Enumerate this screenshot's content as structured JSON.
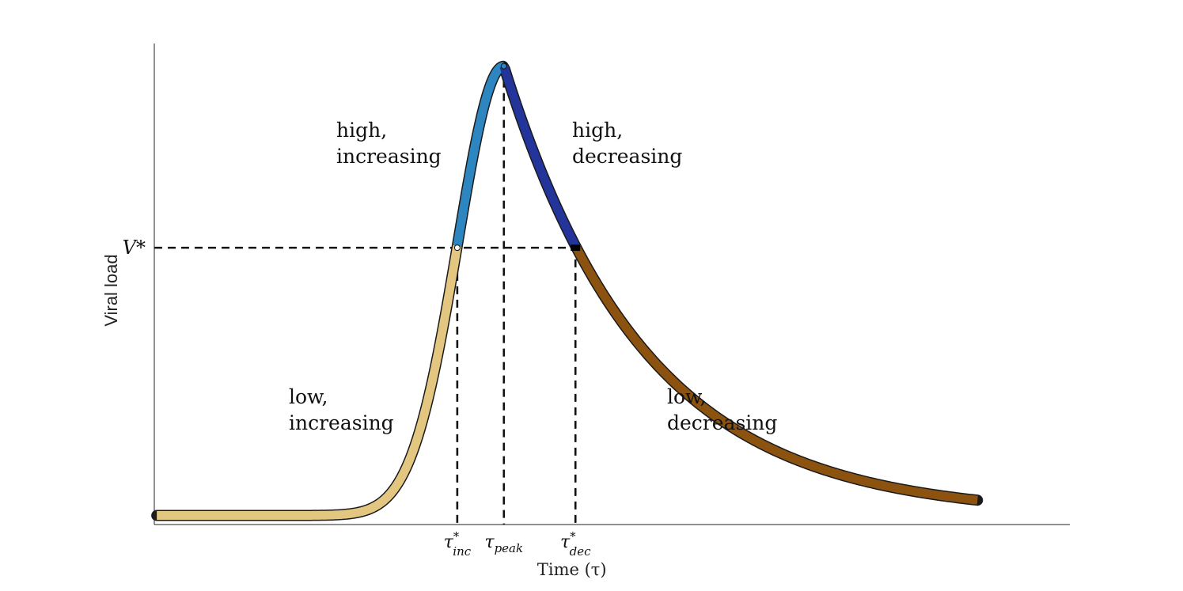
{
  "chart_data": {
    "type": "line",
    "title": "",
    "xlabel": "Time (τ)",
    "ylabel": "Viral load",
    "threshold_label": "V*",
    "grid": false,
    "legend": "none",
    "ticks": [
      {
        "key": "inc",
        "symbol": "τ",
        "sub": "inc",
        "sup": "*",
        "x": 3.64
      },
      {
        "key": "peak",
        "symbol": "τ",
        "sub": "peak",
        "sup": "",
        "x": 4.2
      },
      {
        "key": "dec",
        "symbol": "τ",
        "sub": "dec",
        "sup": "*",
        "x": 5.06
      }
    ],
    "threshold": 0.6,
    "peak": {
      "x": 4.2,
      "y": 1.0
    },
    "xlim": [
      0,
      11
    ],
    "ylim": [
      -0.01,
      1.05
    ],
    "curve": {
      "x0": 0.03,
      "x1": 9.89,
      "baseline": 0.01
    },
    "segments": [
      {
        "name": "low, increasing",
        "lines": [
          "low,",
          "increasing"
        ],
        "color": "#e3c680"
      },
      {
        "name": "high, increasing",
        "lines": [
          "high,",
          "increasing"
        ],
        "color": "#2e86c1"
      },
      {
        "name": "high, decreasing",
        "lines": [
          "high,",
          "decreasing"
        ],
        "color": "#23359b"
      },
      {
        "name": "low, decreasing",
        "lines": [
          "low,",
          "decreasing"
        ],
        "color": "#8b5210"
      }
    ]
  }
}
